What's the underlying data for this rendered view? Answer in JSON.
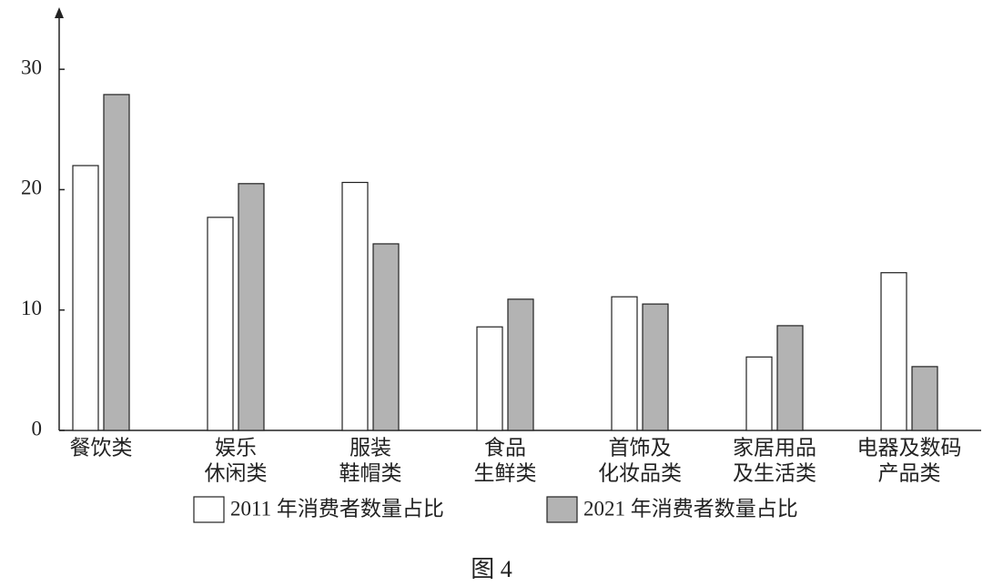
{
  "chart_data": {
    "type": "bar",
    "categories": [
      [
        "餐饮类"
      ],
      [
        "娱乐",
        "休闲类"
      ],
      [
        "服装",
        "鞋帽类"
      ],
      [
        "食品",
        "生鲜类"
      ],
      [
        "首饰及",
        "化妆品类"
      ],
      [
        "家居用品",
        "及生活类"
      ],
      [
        "电器及数码",
        "产品类"
      ]
    ],
    "series": [
      {
        "name": "2011 年消费者数量占比",
        "color": "#ffffff",
        "values": [
          22,
          17.7,
          20.6,
          8.6,
          11.1,
          6.1,
          13.1
        ]
      },
      {
        "name": "2021 年消费者数量占比",
        "color": "#b3b3b3",
        "values": [
          27.9,
          20.5,
          15.5,
          10.9,
          10.5,
          8.7,
          5.3
        ]
      }
    ],
    "ylim": [
      0,
      35
    ],
    "yticks": [
      0,
      10,
      20,
      30
    ],
    "grid": false,
    "caption": "图 4"
  }
}
